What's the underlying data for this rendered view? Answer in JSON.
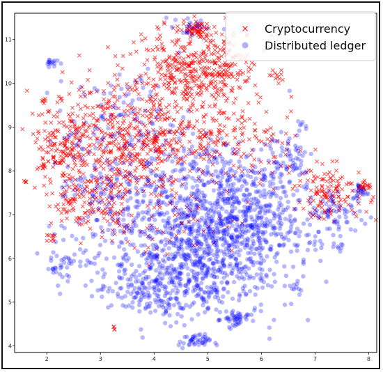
{
  "chart_data": {
    "type": "scatter",
    "title": "",
    "xlabel": "",
    "ylabel": "",
    "xlim": [
      1.4,
      8.15
    ],
    "ylim": [
      3.85,
      11.6
    ],
    "xticks": [
      "2",
      "3",
      "4",
      "5",
      "6",
      "7",
      "8"
    ],
    "yticks": [
      "4",
      "5",
      "6",
      "7",
      "8",
      "9",
      "10",
      "11"
    ],
    "grid": false,
    "legend_position": "top-right",
    "series": [
      {
        "name": "Cryptocurrency",
        "marker": "x",
        "color": "#ff0000",
        "clusters": [
          {
            "cx": 3.4,
            "cy": 8.6,
            "sx": 0.65,
            "sy": 0.75,
            "n": 560
          },
          {
            "cx": 4.6,
            "cy": 10.2,
            "sx": 0.55,
            "sy": 0.55,
            "n": 300
          },
          {
            "cx": 5.2,
            "cy": 10.4,
            "sx": 0.4,
            "sy": 0.4,
            "n": 150
          },
          {
            "cx": 4.8,
            "cy": 11.2,
            "sx": 0.12,
            "sy": 0.1,
            "n": 60
          },
          {
            "cx": 2.3,
            "cy": 8.6,
            "sx": 0.25,
            "sy": 0.4,
            "n": 130
          },
          {
            "cx": 2.5,
            "cy": 7.3,
            "sx": 0.2,
            "sy": 0.25,
            "n": 60
          },
          {
            "cx": 3.1,
            "cy": 7.0,
            "sx": 0.3,
            "sy": 0.3,
            "n": 60
          },
          {
            "cx": 4.6,
            "cy": 8.6,
            "sx": 0.5,
            "sy": 0.4,
            "n": 120
          },
          {
            "cx": 7.3,
            "cy": 7.5,
            "sx": 0.35,
            "sy": 0.3,
            "n": 140
          },
          {
            "cx": 7.9,
            "cy": 7.65,
            "sx": 0.06,
            "sy": 0.05,
            "n": 25
          },
          {
            "cx": 5.9,
            "cy": 8.6,
            "sx": 0.45,
            "sy": 0.45,
            "n": 90
          },
          {
            "cx": 6.3,
            "cy": 10.1,
            "sx": 0.08,
            "sy": 0.08,
            "n": 12
          },
          {
            "cx": 1.9,
            "cy": 8.1,
            "sx": 0.05,
            "sy": 0.05,
            "n": 10
          },
          {
            "cx": 2.1,
            "cy": 6.45,
            "sx": 0.05,
            "sy": 0.05,
            "n": 10
          },
          {
            "cx": 1.95,
            "cy": 9.6,
            "sx": 0.04,
            "sy": 0.04,
            "n": 6
          },
          {
            "cx": 3.25,
            "cy": 4.4,
            "sx": 0.03,
            "sy": 0.03,
            "n": 4
          },
          {
            "cx": 1.6,
            "cy": 7.75,
            "sx": 0.04,
            "sy": 0.04,
            "n": 4
          },
          {
            "cx": 4.4,
            "cy": 6.8,
            "sx": 0.6,
            "sy": 0.4,
            "n": 50
          }
        ]
      },
      {
        "name": "Distributed ledger",
        "marker": "o",
        "color": "#0000ff",
        "clusters": [
          {
            "cx": 4.9,
            "cy": 6.4,
            "sx": 0.85,
            "sy": 0.8,
            "n": 950
          },
          {
            "cx": 4.2,
            "cy": 5.4,
            "sx": 0.5,
            "sy": 0.4,
            "n": 220
          },
          {
            "cx": 5.8,
            "cy": 6.9,
            "sx": 0.55,
            "sy": 0.55,
            "n": 250
          },
          {
            "cx": 5.5,
            "cy": 4.6,
            "sx": 0.12,
            "sy": 0.1,
            "n": 40
          },
          {
            "cx": 4.75,
            "cy": 4.1,
            "sx": 0.15,
            "sy": 0.08,
            "n": 40
          },
          {
            "cx": 5.0,
            "cy": 8.0,
            "sx": 0.6,
            "sy": 0.35,
            "n": 140
          },
          {
            "cx": 6.5,
            "cy": 8.3,
            "sx": 0.25,
            "sy": 0.35,
            "n": 60
          },
          {
            "cx": 7.4,
            "cy": 7.0,
            "sx": 0.3,
            "sy": 0.3,
            "n": 70
          },
          {
            "cx": 7.85,
            "cy": 7.5,
            "sx": 0.08,
            "sy": 0.12,
            "n": 20
          },
          {
            "cx": 2.1,
            "cy": 10.5,
            "sx": 0.06,
            "sy": 0.06,
            "n": 15
          },
          {
            "cx": 2.4,
            "cy": 6.0,
            "sx": 0.25,
            "sy": 0.3,
            "n": 40
          },
          {
            "cx": 3.3,
            "cy": 7.4,
            "sx": 0.45,
            "sy": 0.5,
            "n": 90
          },
          {
            "cx": 3.6,
            "cy": 9.2,
            "sx": 0.55,
            "sy": 0.55,
            "n": 90
          },
          {
            "cx": 2.6,
            "cy": 8.0,
            "sx": 0.3,
            "sy": 0.5,
            "n": 45
          },
          {
            "cx": 6.7,
            "cy": 5.3,
            "sx": 0.06,
            "sy": 0.05,
            "n": 8
          },
          {
            "cx": 7.45,
            "cy": 6.3,
            "sx": 0.06,
            "sy": 0.04,
            "n": 6
          },
          {
            "cx": 6.75,
            "cy": 8.95,
            "sx": 0.06,
            "sy": 0.1,
            "n": 8
          },
          {
            "cx": 4.6,
            "cy": 11.3,
            "sx": 0.25,
            "sy": 0.15,
            "n": 20
          },
          {
            "cx": 2.15,
            "cy": 5.75,
            "sx": 0.06,
            "sy": 0.06,
            "n": 8
          },
          {
            "cx": 3.1,
            "cy": 5.3,
            "sx": 0.05,
            "sy": 0.05,
            "n": 5
          }
        ]
      }
    ]
  }
}
